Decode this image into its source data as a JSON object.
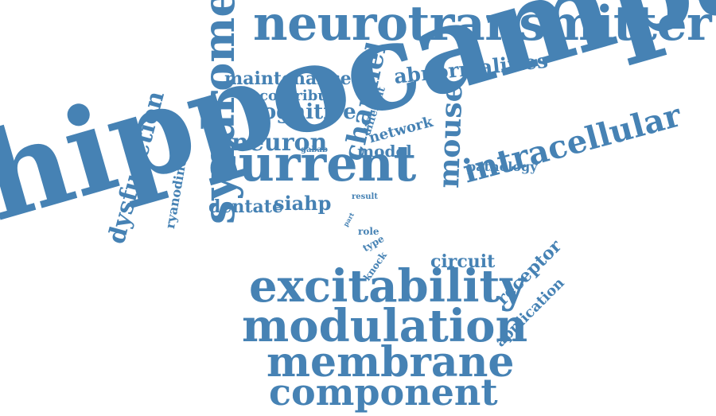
{
  "color": "#4682b4",
  "words": {
    "hippocampal": "hippocampal",
    "neurotransmitter": "neurotransmitter",
    "current": "current",
    "excitability": "excitability",
    "modulation": "modulation",
    "membrane": "membrane",
    "component": "component",
    "intracellular": "intracellular",
    "syndrome": "syndrome",
    "channel": "channel",
    "mouse": "mouse",
    "dysfunction": "dysfunction",
    "ryanodine": "ryanodine",
    "maintenance": "maintenance",
    "abnormalities": "abnormalities",
    "contribute": "contribute",
    "cognitive": "cognitive",
    "different": "different",
    "neuron": "neuron",
    "network": "network",
    "model": "model",
    "gabab": "gabab",
    "pathology": "pathology",
    "dentate": "dentate",
    "siahp": "siahp",
    "result": "result",
    "part": "part",
    "role": "role",
    "type": "type",
    "knock": "knock",
    "circuit": "circuit",
    "receptor": "receptor",
    "application": "application"
  }
}
